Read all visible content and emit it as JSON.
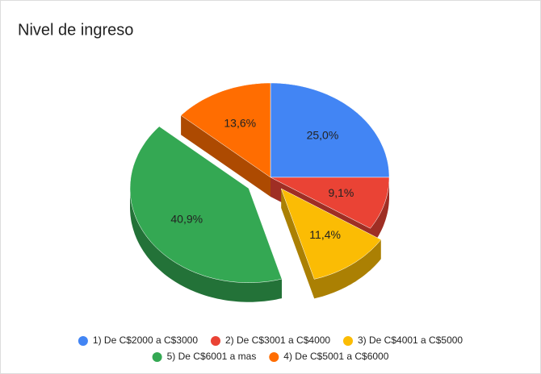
{
  "chart_data": {
    "type": "pie",
    "title": "Nivel de ingreso",
    "categories": [
      "1) De C$2000 a C$3000",
      "2) De C$3001 a C$4000",
      "3) De C$4001 a C$5000",
      "5) De C$6001 a mas",
      "4) De C$5001 a C$6000"
    ],
    "values": [
      25.0,
      9.1,
      11.4,
      40.9,
      13.6
    ],
    "value_labels": [
      "25,0%",
      "9,1%",
      "11,4%",
      "40,9%",
      "13,6%"
    ],
    "colors": [
      "#4285f4",
      "#ea4335",
      "#fbbc04",
      "#34a853",
      "#ff6d01"
    ],
    "legend": "bottom"
  }
}
